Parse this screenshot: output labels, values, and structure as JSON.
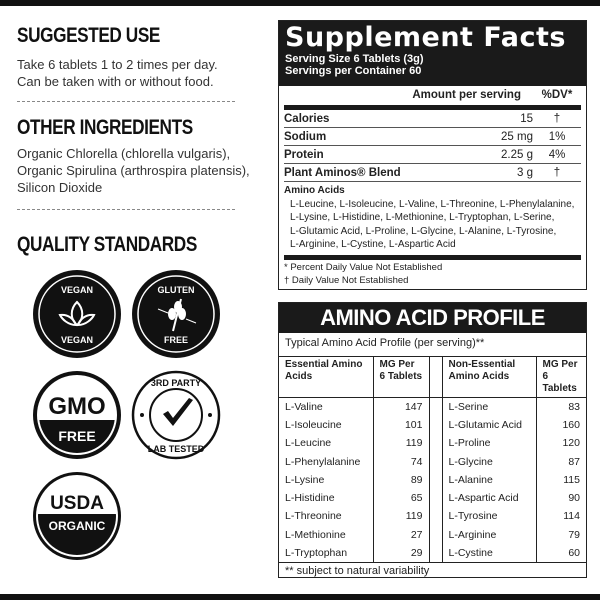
{
  "left": {
    "suggested_use": {
      "title": "SUGGESTED USE",
      "lines": [
        "Take 6 tablets 1 to 2 times per day.",
        "Can be taken with or without food."
      ]
    },
    "other_ingredients": {
      "title": "OTHER INGREDIENTS",
      "lines": [
        "Organic Chlorella (chlorella vulgaris),",
        "Organic Spirulina (arthrospira platensis),",
        "Silicon Dioxide"
      ]
    },
    "quality": {
      "title": "QUALITY STANDARDS",
      "badges": [
        {
          "icon": "vegan-leaf-icon",
          "top": "VEGAN",
          "bottom": "VEGAN"
        },
        {
          "icon": "wheat-icon",
          "top": "GLUTEN",
          "bottom": "FREE"
        },
        {
          "icon": "gmo-free-icon",
          "top": "GMO",
          "bottom": "FREE"
        },
        {
          "icon": "checkmark-icon",
          "top": "3RD PARTY",
          "bottom": "LAB TESTED"
        },
        {
          "icon": "usda-organic-icon",
          "top": "USDA",
          "bottom": "ORGANIC"
        }
      ]
    }
  },
  "supplement_facts": {
    "title": "Supplement Facts",
    "serving_size": "Serving Size 6 Tablets (3g)",
    "servings": "Servings per Container 60",
    "col_amount": "Amount per serving",
    "col_dv": "%DV*",
    "rows": [
      {
        "name": "Calories",
        "amount": "15",
        "dv": "†"
      },
      {
        "name": "Sodium",
        "amount": "25 mg",
        "dv": "1%"
      },
      {
        "name": "Protein",
        "amount": "2.25 g",
        "dv": "4%"
      },
      {
        "name": "Plant Aminos® Blend",
        "amount": "3 g",
        "dv": "†"
      }
    ],
    "amino_label": "Amino Acids",
    "amino_lines": [
      "L-Leucine, L-Isoleucine, L-Valine, L-Threonine, L-Phenylalanine,",
      "L-Lysine, L-Histidine, L-Methionine, L-Tryptophan, L-Serine,",
      "L-Glutamic Acid, L-Proline, L-Glycine, L-Alanine, L-Tyrosine,",
      "L-Arginine, L-Cystine, L-Aspartic Acid"
    ],
    "foot1": "* Percent Daily Value Not Established",
    "foot2": "† Daily Value Not Established"
  },
  "amino_profile": {
    "title": "AMINO ACID PROFILE",
    "subtitle": "Typical Amino Acid Profile (per serving)**",
    "headers": [
      "Essential Amino Acids",
      "MG Per 6 Tablets",
      "Non-Essential Amino Acids",
      "MG Per 6 Tablets"
    ],
    "rows": [
      [
        "L-Valine",
        "147",
        "L-Serine",
        "83"
      ],
      [
        "L-Isoleucine",
        "101",
        "L-Glutamic Acid",
        "160"
      ],
      [
        "L-Leucine",
        "119",
        "L-Proline",
        "120"
      ],
      [
        "L-Phenylalanine",
        "74",
        "L-Glycine",
        "87"
      ],
      [
        "L-Lysine",
        "89",
        "L-Alanine",
        "115"
      ],
      [
        "L-Histidine",
        "65",
        "L-Aspartic Acid",
        "90"
      ],
      [
        "L-Threonine",
        "119",
        "L-Tyrosine",
        "114"
      ],
      [
        "L-Methionine",
        "27",
        "L-Arginine",
        "79"
      ],
      [
        "L-Tryptophan",
        "29",
        "L-Cystine",
        "60"
      ]
    ],
    "footnote": "** subject to natural variability"
  }
}
